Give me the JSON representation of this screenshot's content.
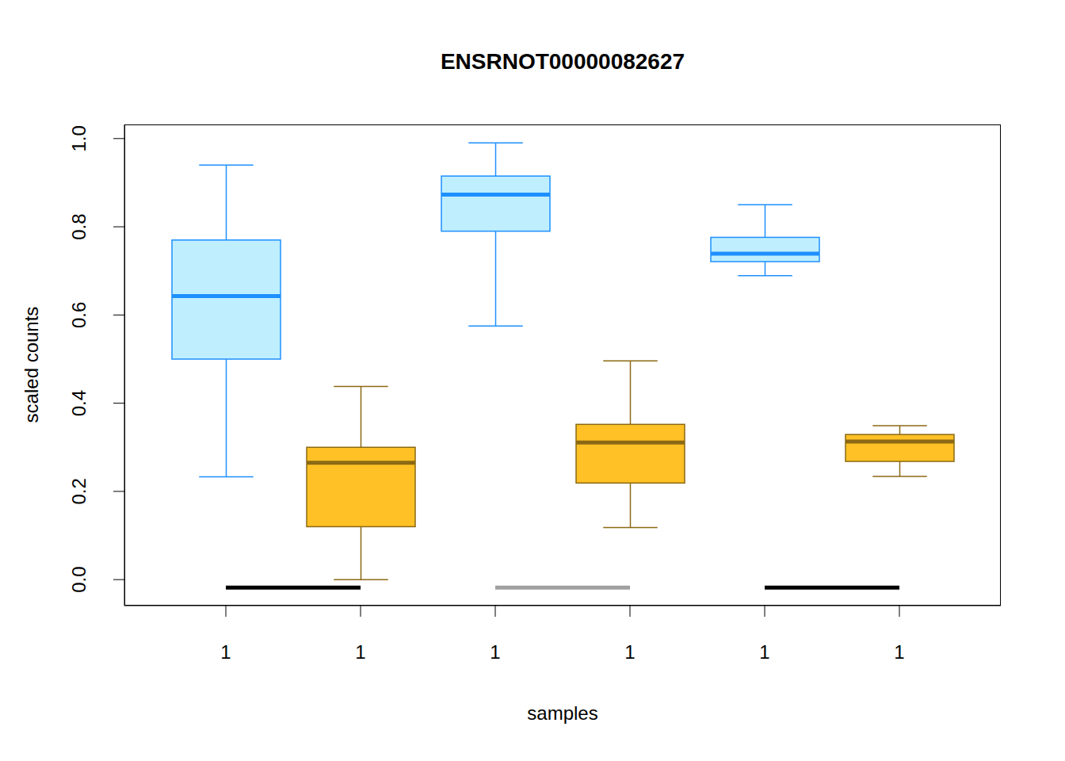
{
  "chart_data": {
    "type": "boxplot",
    "title": "ENSRNOT00000082627",
    "x_label": "samples",
    "y_label": "scaled counts",
    "categories": [
      "1",
      "1",
      "1",
      "1",
      "1",
      "1"
    ],
    "boxes": [
      {
        "min": 0.233,
        "q1": 0.5,
        "median": 0.643,
        "q3": 0.77,
        "max": 0.94
      },
      {
        "min": 0.0,
        "q1": 0.12,
        "median": 0.265,
        "q3": 0.3,
        "max": 0.438
      },
      {
        "min": 0.575,
        "q1": 0.79,
        "median": 0.873,
        "q3": 0.915,
        "max": 0.99
      },
      {
        "min": 0.118,
        "q1": 0.219,
        "median": 0.311,
        "q3": 0.352,
        "max": 0.496
      },
      {
        "min": 0.689,
        "q1": 0.721,
        "median": 0.739,
        "q3": 0.776,
        "max": 0.85
      },
      {
        "min": 0.234,
        "q1": 0.268,
        "median": 0.313,
        "q3": 0.329,
        "max": 0.349
      }
    ],
    "colors": [
      "#BFEFFF",
      "#FFC125",
      "#BFEFFF",
      "#FFC125",
      "#BFEFFF",
      "#FFC125"
    ],
    "segments": [
      {
        "from": 0,
        "to": 1,
        "y": -0.018,
        "color": "#000000"
      },
      {
        "from": 2,
        "to": 3,
        "y": -0.018,
        "color": "#A0A0A0"
      },
      {
        "from": 4,
        "to": 5,
        "y": -0.018,
        "color": "#000000"
      }
    ],
    "ylim": [
      -0.059,
      1.032
    ],
    "yticks": [
      {
        "value": 0,
        "label": "0.0"
      },
      0.2,
      0.4,
      0.6,
      0.8,
      {
        "value": 1,
        "label": "1.0"
      }
    ],
    "grid": false
  }
}
